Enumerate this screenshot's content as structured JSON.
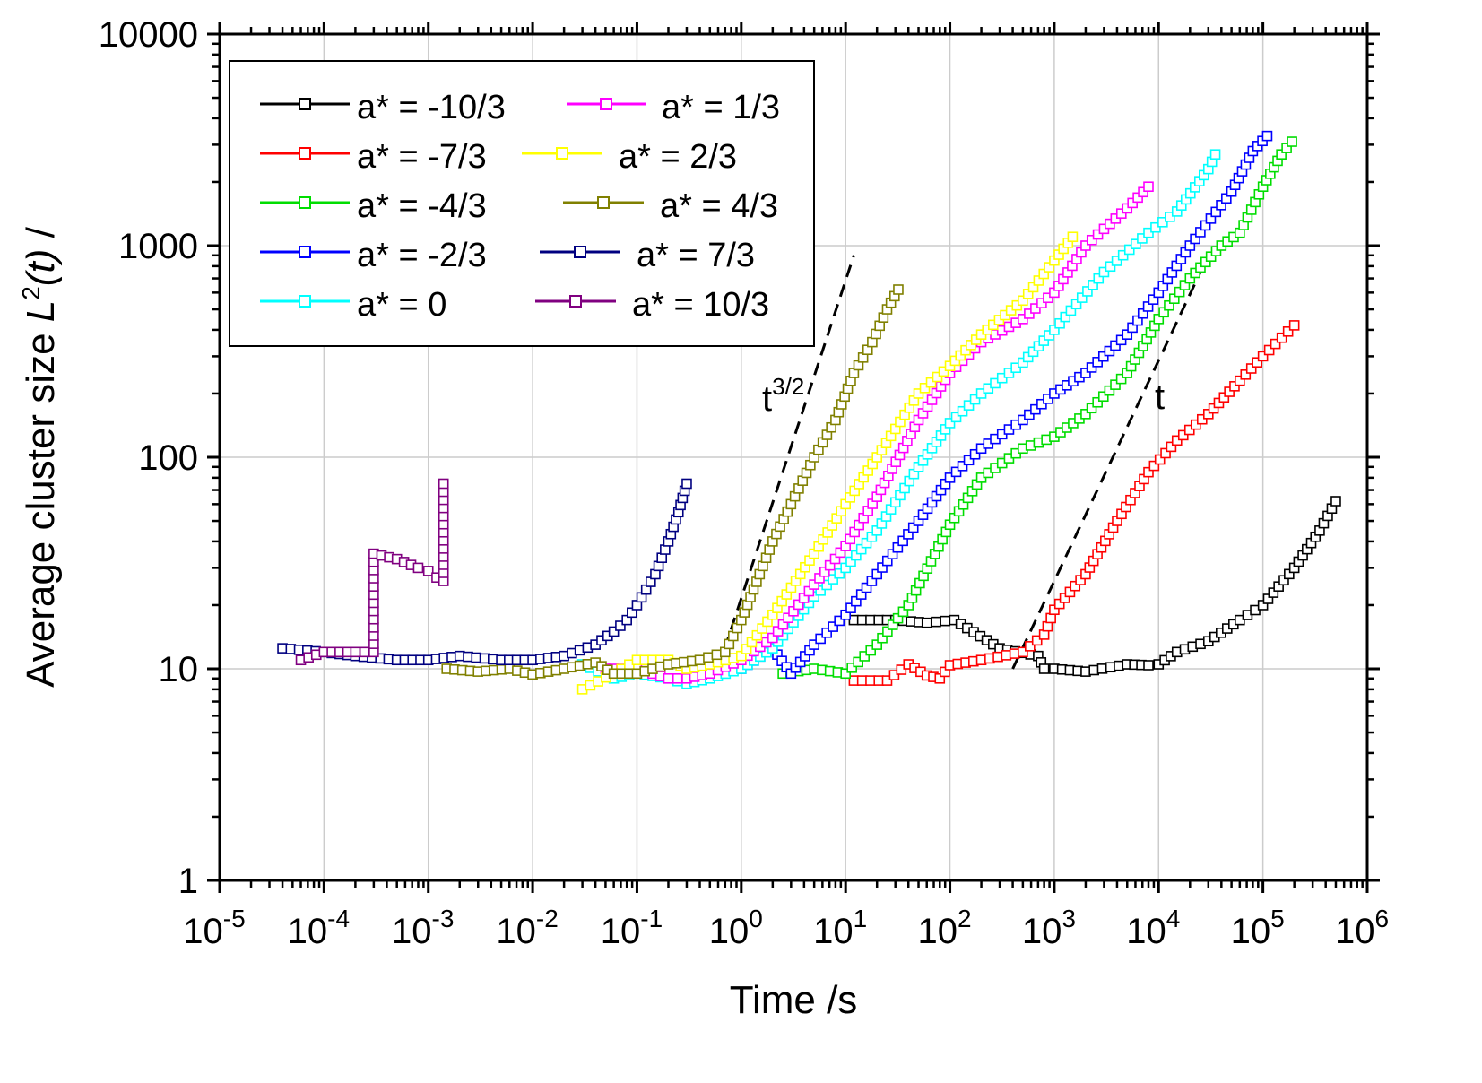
{
  "chart_data": {
    "type": "scatter",
    "scale": {
      "x": "log",
      "y": "log"
    },
    "xlim": [
      1e-05,
      1000000
    ],
    "ylim": [
      1,
      10000
    ],
    "xlabel": "Time /s",
    "ylabel": "Average cluster size L²(t) /",
    "ylabel_parts": {
      "pre": "Average cluster size ",
      "var": "L",
      "sup": "2",
      "post": "(t) /"
    },
    "grid": true,
    "legend_position": "top-left",
    "x_ticks": [
      {
        "base": "10",
        "exp": "-5"
      },
      {
        "base": "10",
        "exp": "-4"
      },
      {
        "base": "10",
        "exp": "-3"
      },
      {
        "base": "10",
        "exp": "-2"
      },
      {
        "base": "10",
        "exp": "-1"
      },
      {
        "base": "10",
        "exp": "0"
      },
      {
        "base": "10",
        "exp": "1"
      },
      {
        "base": "10",
        "exp": "2"
      },
      {
        "base": "10",
        "exp": "3"
      },
      {
        "base": "10",
        "exp": "4"
      },
      {
        "base": "10",
        "exp": "5"
      },
      {
        "base": "10",
        "exp": "6"
      }
    ],
    "y_ticks": [
      "1",
      "10",
      "100",
      "1000",
      "10000"
    ],
    "series": [
      {
        "name": "a* = -10/3",
        "color": "#000000",
        "x": [
          12,
          30,
          60,
          110,
          300,
          700,
          800,
          1000,
          2000,
          5000,
          8000,
          10000,
          15000,
          30000,
          60000,
          100000,
          200000,
          350000,
          500000
        ],
        "y": [
          17,
          17,
          16.5,
          17,
          12.5,
          11.5,
          10,
          10,
          9.7,
          10.5,
          10.4,
          10.5,
          12,
          13.5,
          17,
          20,
          30,
          45,
          62
        ]
      },
      {
        "name": "a* = -7/3",
        "color": "#ff0000",
        "x": [
          12,
          25,
          40,
          60,
          80,
          100,
          200,
          500,
          800,
          1000,
          2000,
          4000,
          8000,
          15000,
          30000,
          60000,
          100000,
          200000
        ],
        "y": [
          8.8,
          8.8,
          10.5,
          9.3,
          9,
          10.4,
          11,
          12,
          14.5,
          19,
          28,
          50,
          85,
          120,
          160,
          230,
          300,
          420
        ]
      },
      {
        "name": "a* = -4/3",
        "color": "#00dd00",
        "x": [
          2.5,
          5,
          10,
          20,
          40,
          100,
          200,
          500,
          1000,
          2000,
          5000,
          10000,
          20000,
          40000,
          60000,
          100000,
          150000,
          190000
        ],
        "y": [
          9.5,
          10,
          9.5,
          13,
          20,
          48,
          80,
          110,
          125,
          160,
          250,
          450,
          700,
          1000,
          1150,
          1900,
          2700,
          3100
        ]
      },
      {
        "name": "a* = -2/3",
        "color": "#0000ff",
        "x": [
          1,
          2,
          3,
          5,
          10,
          20,
          50,
          100,
          200,
          500,
          1000,
          2000,
          5000,
          10000,
          20000,
          50000,
          80000,
          110000
        ],
        "y": [
          10,
          12.5,
          9.5,
          13,
          18,
          28,
          50,
          80,
          110,
          150,
          200,
          250,
          380,
          600,
          1000,
          1800,
          2800,
          3300
        ]
      },
      {
        "name": "a* = 0",
        "color": "#00ffff",
        "x": [
          0.03,
          0.06,
          0.1,
          0.2,
          0.3,
          0.5,
          1,
          2,
          5,
          10,
          20,
          50,
          100,
          200,
          500,
          1000,
          3000,
          8000,
          15000,
          30000,
          35000
        ],
        "y": [
          10.5,
          9,
          9.5,
          9,
          8.5,
          9,
          10,
          12.5,
          22,
          30,
          45,
          90,
          145,
          200,
          280,
          400,
          750,
          1150,
          1450,
          2300,
          2700
        ]
      },
      {
        "name": "a* = 1/3",
        "color": "#ff00ff",
        "x": [
          0.05,
          0.1,
          0.2,
          0.3,
          0.5,
          1,
          2,
          5,
          10,
          20,
          50,
          100,
          200,
          500,
          1000,
          2000,
          3000,
          5000,
          8000
        ],
        "y": [
          10,
          10,
          9,
          9,
          9.5,
          11,
          14,
          25,
          38,
          65,
          150,
          250,
          350,
          450,
          600,
          1000,
          1200,
          1500,
          1900
        ]
      },
      {
        "name": "a* = 2/3",
        "color": "#ffff00",
        "x": [
          0.03,
          0.06,
          0.1,
          0.2,
          0.3,
          0.5,
          1,
          2,
          5,
          10,
          20,
          50,
          100,
          200,
          500,
          1000,
          1500
        ],
        "y": [
          8,
          9.5,
          11,
          11,
          10,
          10.5,
          11.5,
          18,
          35,
          60,
          100,
          200,
          270,
          380,
          550,
          850,
          1100
        ]
      },
      {
        "name": "a* = 4/3",
        "color": "#808000",
        "x": [
          0.0015,
          0.003,
          0.006,
          0.01,
          0.02,
          0.04,
          0.06,
          0.1,
          0.2,
          0.4,
          0.7,
          1,
          1.5,
          2,
          3,
          5,
          8,
          12,
          18,
          25,
          32
        ],
        "y": [
          10,
          9.7,
          10,
          9.4,
          10,
          10.7,
          9.5,
          9.5,
          10.5,
          11,
          12,
          17,
          28,
          40,
          60,
          100,
          150,
          250,
          350,
          500,
          620
        ]
      },
      {
        "name": "a* = 7/3",
        "color": "#000080",
        "x": [
          4e-05,
          0.0001,
          0.0002,
          0.0005,
          0.001,
          0.002,
          0.005,
          0.01,
          0.02,
          0.04,
          0.06,
          0.08,
          0.1,
          0.15,
          0.2,
          0.25,
          0.3
        ],
        "y": [
          12.5,
          12,
          11.5,
          11,
          11,
          11.5,
          11,
          11,
          11.5,
          13,
          15,
          17,
          20,
          28,
          40,
          55,
          75
        ]
      },
      {
        "name": "a* = 10/3",
        "color": "#800080",
        "x": [
          6e-05,
          0.0001,
          0.0002,
          0.0003,
          0.0003,
          0.0005,
          0.0008,
          0.001,
          0.0012,
          0.0014,
          0.0014
        ],
        "y": [
          11,
          12,
          12,
          12,
          35,
          33,
          30,
          29,
          27,
          26,
          75
        ]
      }
    ],
    "reference_lines": [
      {
        "label_base": "t",
        "label_exp": "3/2",
        "x": [
          0.6,
          12
        ],
        "y": [
          10,
          900
        ]
      },
      {
        "label_base": "t",
        "label_exp": "",
        "x": [
          400,
          30000
        ],
        "y": [
          10,
          900
        ]
      }
    ]
  }
}
